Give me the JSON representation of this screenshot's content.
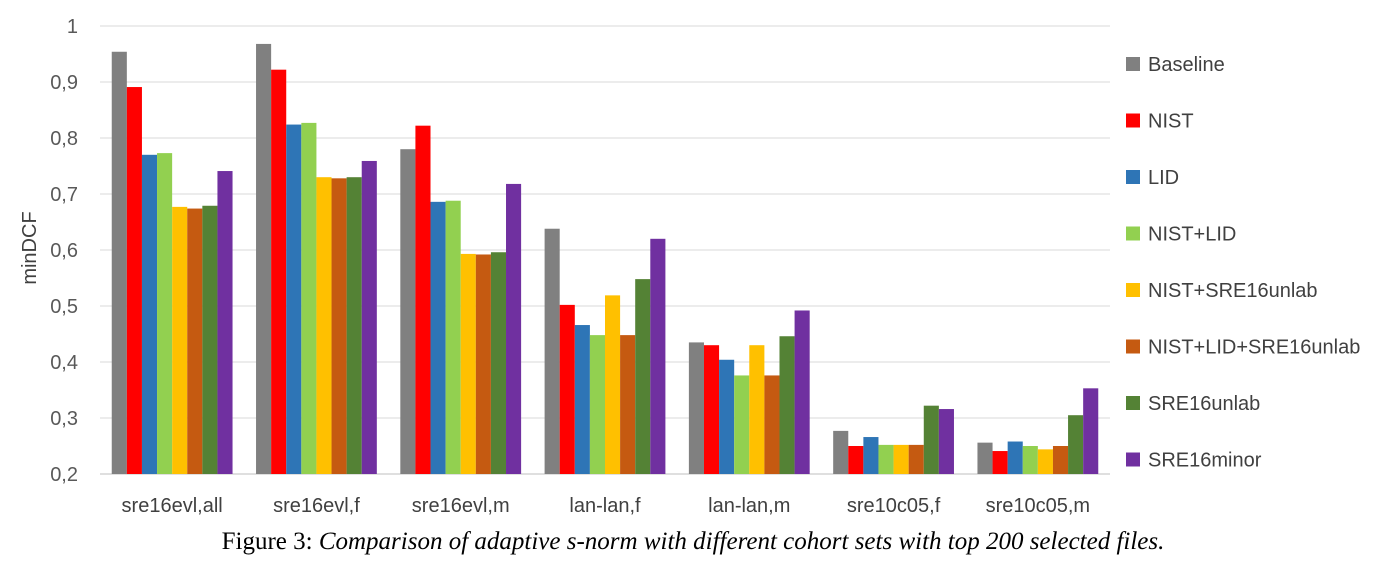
{
  "chart_data": {
    "type": "bar",
    "title": "",
    "xlabel": "",
    "ylabel": "minDCF",
    "ylim": [
      0.2,
      1.0
    ],
    "yticks": [
      "0,2",
      "0,3",
      "0,4",
      "0,5",
      "0,6",
      "0,7",
      "0,8",
      "0,9",
      "1"
    ],
    "grid": true,
    "legend_position": "right",
    "categories": [
      "sre16evl,all",
      "sre16evl,f",
      "sre16evl,m",
      "lan-lan,f",
      "lan-lan,m",
      "sre10c05,f",
      "sre10c05,m"
    ],
    "series": [
      {
        "name": "Baseline",
        "color": "#808080",
        "values": [
          0.954,
          0.968,
          0.78,
          0.638,
          0.435,
          0.277,
          0.256
        ]
      },
      {
        "name": "NIST",
        "color": "#ff0000",
        "values": [
          0.891,
          0.922,
          0.822,
          0.502,
          0.43,
          0.25,
          0.241
        ]
      },
      {
        "name": "LID",
        "color": "#2e75b6",
        "values": [
          0.77,
          0.824,
          0.686,
          0.466,
          0.404,
          0.266,
          0.258
        ]
      },
      {
        "name": "NIST+LID",
        "color": "#92d050",
        "values": [
          0.773,
          0.827,
          0.688,
          0.448,
          0.376,
          0.252,
          0.25
        ]
      },
      {
        "name": "NIST+SRE16unlab",
        "color": "#ffc000",
        "values": [
          0.677,
          0.73,
          0.593,
          0.519,
          0.43,
          0.252,
          0.244
        ]
      },
      {
        "name": "NIST+LID+SRE16unlab",
        "color": "#c55a11",
        "values": [
          0.674,
          0.728,
          0.592,
          0.448,
          0.376,
          0.252,
          0.25
        ]
      },
      {
        "name": "SRE16unlab",
        "color": "#548235",
        "values": [
          0.679,
          0.73,
          0.596,
          0.548,
          0.446,
          0.322,
          0.305
        ]
      },
      {
        "name": "SRE16minor",
        "color": "#7030a0",
        "values": [
          0.741,
          0.759,
          0.718,
          0.62,
          0.492,
          0.316,
          0.353
        ]
      }
    ]
  },
  "caption": {
    "label": "Figure 3: ",
    "text": "Comparison of adaptive s-norm with different cohort sets with top 200 selected files."
  }
}
